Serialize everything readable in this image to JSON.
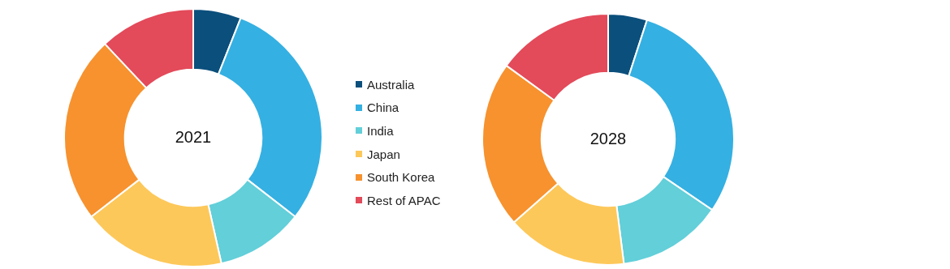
{
  "chart_data": [
    {
      "type": "donut",
      "title": "2021",
      "legend": "right",
      "categories": [
        "Australia",
        "China",
        "India",
        "Japan",
        "South Korea",
        "Rest of APAC"
      ],
      "values": [
        6,
        29.5,
        11,
        18,
        23.5,
        12
      ],
      "colors": [
        "#0b4f7c",
        "#35b0e2",
        "#62cfd9",
        "#fdc85a",
        "#f7922e",
        "#e34a5a"
      ]
    },
    {
      "type": "donut",
      "title": "2028",
      "categories": [
        null,
        null,
        null,
        null,
        null,
        null
      ],
      "values": [
        5,
        29.5,
        13.5,
        15.5,
        21.5,
        15
      ],
      "colors": [
        "#0b4f7c",
        "#35b0e2",
        "#62cfd9",
        "#fdc85a",
        "#f7922e",
        "#e34a5a"
      ]
    }
  ]
}
